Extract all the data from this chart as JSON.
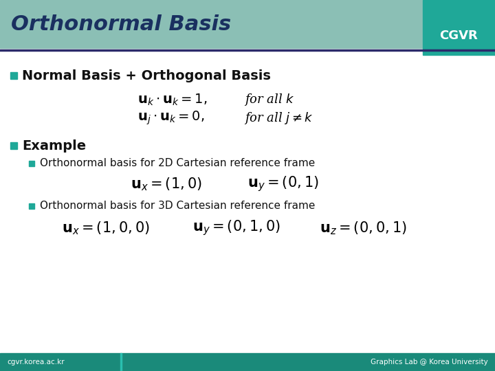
{
  "title": "Orthonormal Basis",
  "title_bg_color": "#8BBFB5",
  "title_text_color": "#1A3060",
  "cgvr_bg_color": "#1FA898",
  "cgvr_text_color": "#FFFFFF",
  "header_line_color": "#2A2A6A",
  "bullet_color": "#1FA898",
  "footer_bg_color": "#1A8A7A",
  "footer_left": "cgvr.korea.ac.kr",
  "footer_right": "Graphics Lab @ Korea University",
  "footer_text_color": "#FFFFFF",
  "bg_color": "#FFFFFF"
}
